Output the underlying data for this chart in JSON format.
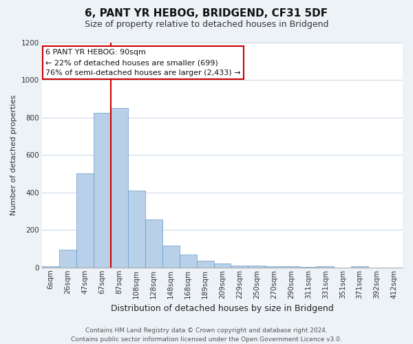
{
  "title": "6, PANT YR HEBOG, BRIDGEND, CF31 5DF",
  "subtitle": "Size of property relative to detached houses in Bridgend",
  "xlabel": "Distribution of detached houses by size in Bridgend",
  "ylabel": "Number of detached properties",
  "bar_labels": [
    "6sqm",
    "26sqm",
    "47sqm",
    "67sqm",
    "87sqm",
    "108sqm",
    "128sqm",
    "148sqm",
    "168sqm",
    "189sqm",
    "209sqm",
    "229sqm",
    "250sqm",
    "270sqm",
    "290sqm",
    "311sqm",
    "331sqm",
    "351sqm",
    "371sqm",
    "392sqm",
    "412sqm"
  ],
  "bar_values": [
    5,
    95,
    500,
    825,
    850,
    410,
    255,
    115,
    70,
    35,
    20,
    10,
    10,
    5,
    5,
    3,
    5,
    0,
    5,
    0,
    0
  ],
  "bar_color": "#b8d0e8",
  "bar_edgecolor": "#6699cc",
  "vline_color": "#cc0000",
  "annotation_text": "6 PANT YR HEBOG: 90sqm\n← 22% of detached houses are smaller (699)\n76% of semi-detached houses are larger (2,433) →",
  "annotation_box_color": "white",
  "annotation_box_edgecolor": "#cc0000",
  "ylim": [
    0,
    1200
  ],
  "yticks": [
    0,
    200,
    400,
    600,
    800,
    1000,
    1200
  ],
  "footer_line1": "Contains HM Land Registry data © Crown copyright and database right 2024.",
  "footer_line2": "Contains public sector information licensed under the Open Government Licence v3.0.",
  "background_color": "#edf2f7",
  "plot_background_color": "#ffffff",
  "grid_color": "#c5d5e5",
  "title_fontsize": 11,
  "subtitle_fontsize": 9,
  "ylabel_fontsize": 8,
  "xlabel_fontsize": 9,
  "tick_fontsize": 7.5,
  "annotation_fontsize": 8,
  "footer_fontsize": 6.5
}
